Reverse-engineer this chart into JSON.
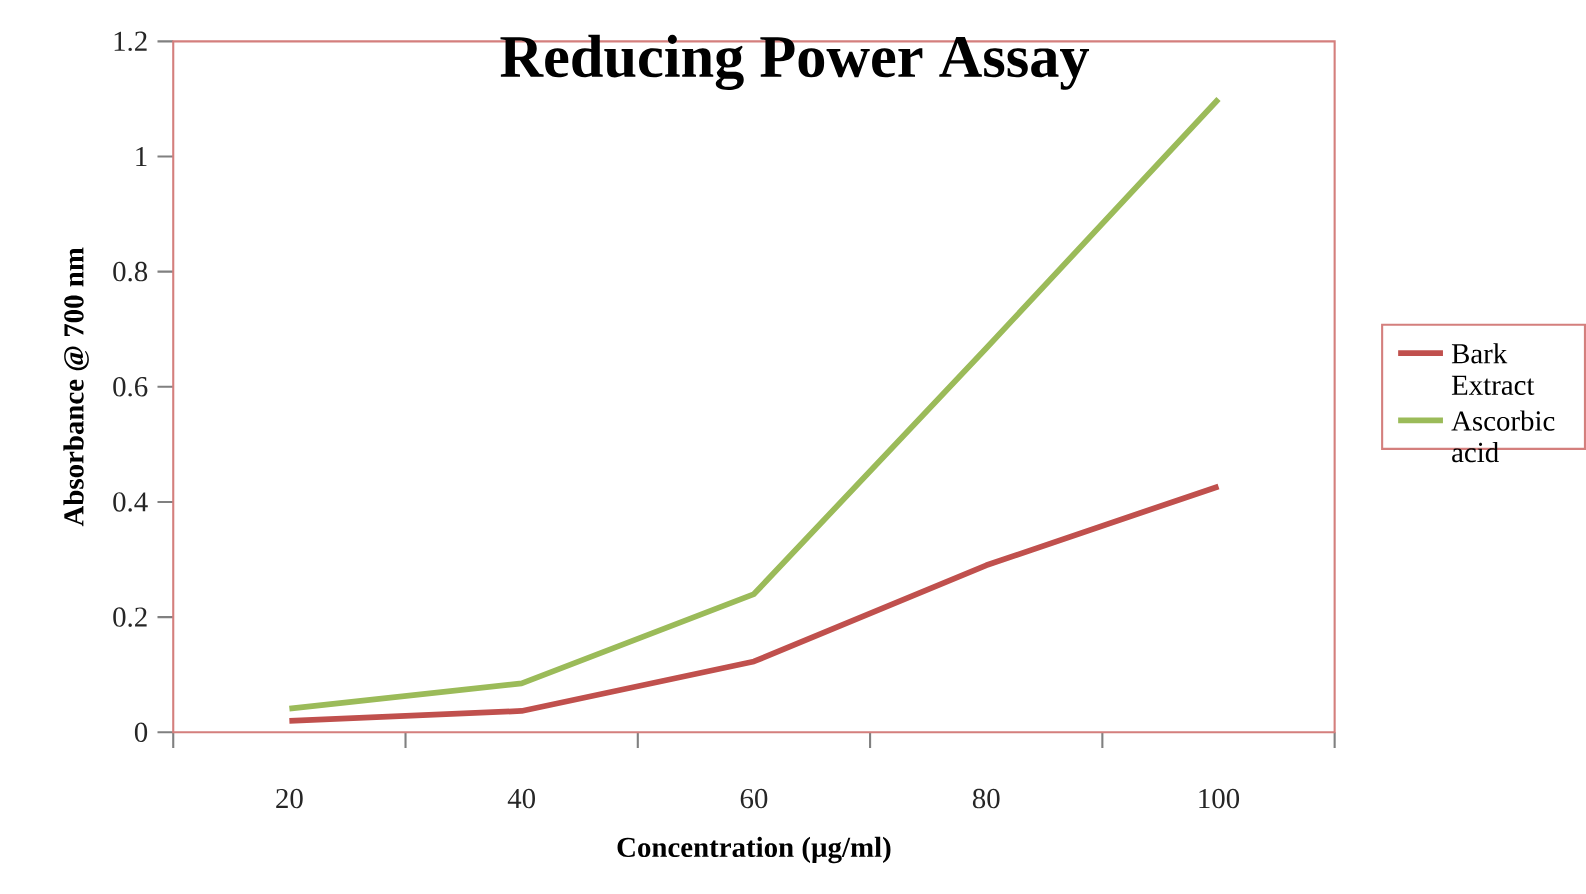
{
  "chart_data": {
    "type": "line",
    "title": "Reducing Power Assay",
    "xlabel": "Concentration (µg/ml)",
    "ylabel": "Absorbance @ 700 nm",
    "categories": [
      "20",
      "40",
      "60",
      "80",
      "100"
    ],
    "series": [
      {
        "name": "Bark Extract",
        "color": "#c0504d",
        "values": [
          0.02,
          0.037,
          0.123,
          0.29,
          0.427
        ]
      },
      {
        "name": "Ascorbic acid",
        "color": "#9bbb59",
        "values": [
          0.041,
          0.085,
          0.24,
          0.667,
          1.1
        ]
      }
    ],
    "ylim": [
      0,
      1.2
    ],
    "yticks": [
      0,
      0.2,
      0.4,
      0.6,
      0.8,
      1,
      1.2
    ],
    "grid": false,
    "legend": "right",
    "marker": "none",
    "line_style": "solid"
  }
}
